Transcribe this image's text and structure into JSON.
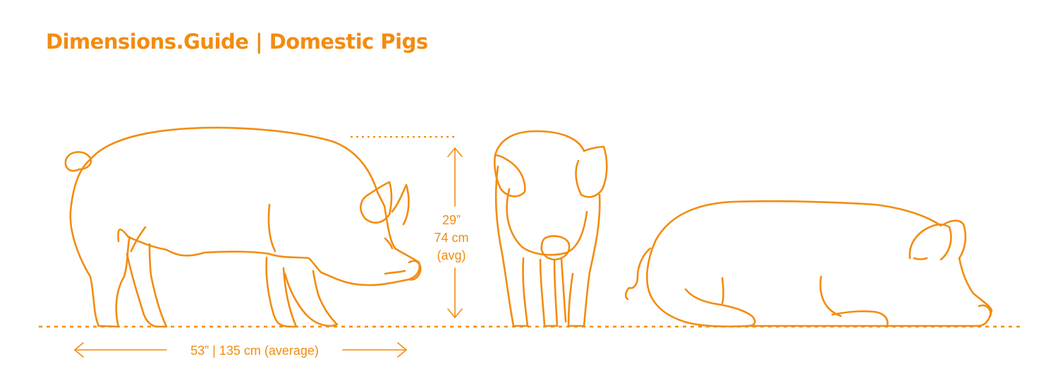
{
  "header": {
    "title": "Dimensions.Guide | Domestic Pigs"
  },
  "dimensions": {
    "height": {
      "imperial": "29”",
      "metric": "74 cm",
      "note": "(avg)"
    },
    "length": {
      "label": "53” | 135 cm (average)"
    }
  },
  "views": [
    "side-standing",
    "front-standing",
    "side-lying"
  ],
  "colors": {
    "accent": "#f28c0f",
    "background": "#ffffff"
  }
}
